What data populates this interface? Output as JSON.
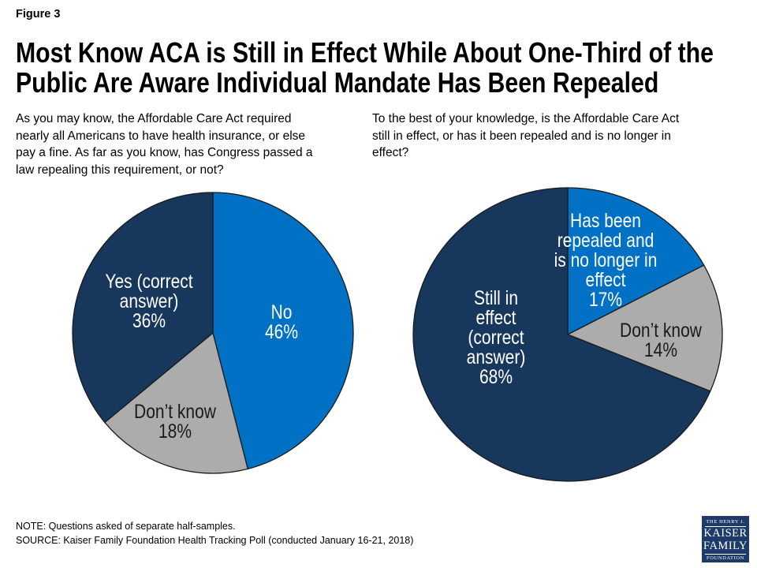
{
  "page": {
    "figure_label": "Figure 3",
    "title_line1": "Most Know ACA is Still in Effect While About One-Third of the",
    "title_line2": "Public Are Aware Individual Mandate Has Been Repealed",
    "note": "NOTE: Questions asked of separate half-samples.",
    "source": "SOURCE: Kaiser Family Foundation Health Tracking Poll (conducted January 16-21, 2018)"
  },
  "colors": {
    "light_blue": "#0071C5",
    "navy": "#17375D",
    "gray": "#ACACAC",
    "slice_stroke": "#1A1A1A",
    "logo_navy": "#1E3A68"
  },
  "chart_data": [
    {
      "type": "pie",
      "question": "As you may know, the Affordable Care Act required\nnearly all Americans to have health insurance, or else\npay a fine. As far as you know, has Congress passed a\nlaw repealing this requirement, or not?",
      "start": "12 o'clock",
      "direction": "clockwise",
      "slices": [
        {
          "name": "No",
          "value": 46,
          "percent_label": "46%",
          "color": "#0071C5",
          "label": "No\n46%",
          "label_color": "#FFFFFF"
        },
        {
          "name": "Don’t know",
          "value": 18,
          "percent_label": "18%",
          "color": "#ACACAC",
          "label": "Don’t know\n18%",
          "label_color": "#1A1A1A"
        },
        {
          "name": "Yes (correct answer)",
          "value": 36,
          "percent_label": "36%",
          "color": "#17375D",
          "label": "Yes (correct\nanswer)\n36%",
          "label_color": "#FFFFFF"
        }
      ]
    },
    {
      "type": "pie",
      "question": "To the best of your knowledge, is the Affordable Care Act\nstill in effect, or has it been repealed and is no longer in\neffect?",
      "start": "12 o'clock",
      "direction": "clockwise",
      "slices": [
        {
          "name": "Has been repealed and is no longer in effect",
          "value": 17,
          "percent_label": "17%",
          "color": "#0071C5",
          "label": "Has been\nrepealed and\nis no longer in\neffect\n17%",
          "label_color": "#FFFFFF"
        },
        {
          "name": "Don’t know",
          "value": 14,
          "percent_label": "14%",
          "color": "#ACACAC",
          "label": "Don’t know\n14%",
          "label_color": "#1A1A1A"
        },
        {
          "name": "Still in effect (correct answer)",
          "value": 68,
          "percent_label": "68%",
          "color": "#17375D",
          "label": "Still in\neffect\n(correct\nanswer)\n68%",
          "label_color": "#FFFFFF"
        }
      ]
    }
  ],
  "logo": {
    "line1": "THE HENRY J.",
    "line2": "KAISER",
    "line3": "FAMILY",
    "line4": "FOUNDATION"
  }
}
